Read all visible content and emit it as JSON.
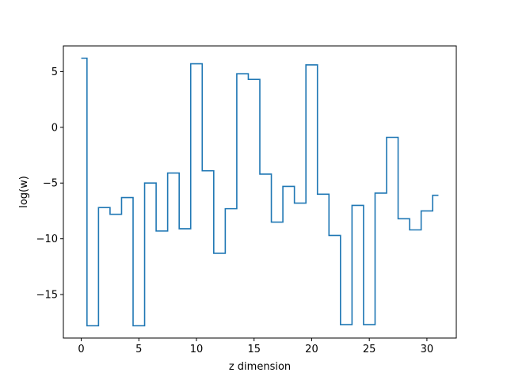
{
  "chart_data": {
    "type": "line",
    "drawstyle": "steps-mid",
    "xlabel": "z dimension",
    "ylabel": "log(w)",
    "xlim": [
      -1.55,
      32.55
    ],
    "ylim": [
      -18.9,
      7.3
    ],
    "xticks": [
      0,
      5,
      10,
      15,
      20,
      25,
      30
    ],
    "yticks": [
      5,
      0,
      -5,
      -10,
      -15
    ],
    "ytick_labels": [
      "5",
      "0",
      "−5",
      "−10",
      "−15"
    ],
    "grid": false,
    "series": [
      {
        "color": "#1f77b4",
        "x": [
          0,
          1,
          2,
          3,
          4,
          5,
          6,
          7,
          8,
          9,
          10,
          11,
          12,
          13,
          14,
          15,
          16,
          17,
          18,
          19,
          20,
          21,
          22,
          23,
          24,
          25,
          26,
          27,
          28,
          29,
          30,
          31
        ],
        "y": [
          6.2,
          -17.8,
          -7.2,
          -7.8,
          -6.3,
          -17.8,
          -5.0,
          -9.3,
          -4.1,
          -9.1,
          5.7,
          -3.9,
          -11.3,
          -7.3,
          4.8,
          4.3,
          -4.2,
          -8.5,
          -5.3,
          -6.8,
          5.6,
          -6.0,
          -9.7,
          -17.7,
          -7.0,
          -17.7,
          -5.9,
          -0.9,
          -8.2,
          -9.2,
          -7.5,
          -6.1
        ]
      }
    ]
  }
}
